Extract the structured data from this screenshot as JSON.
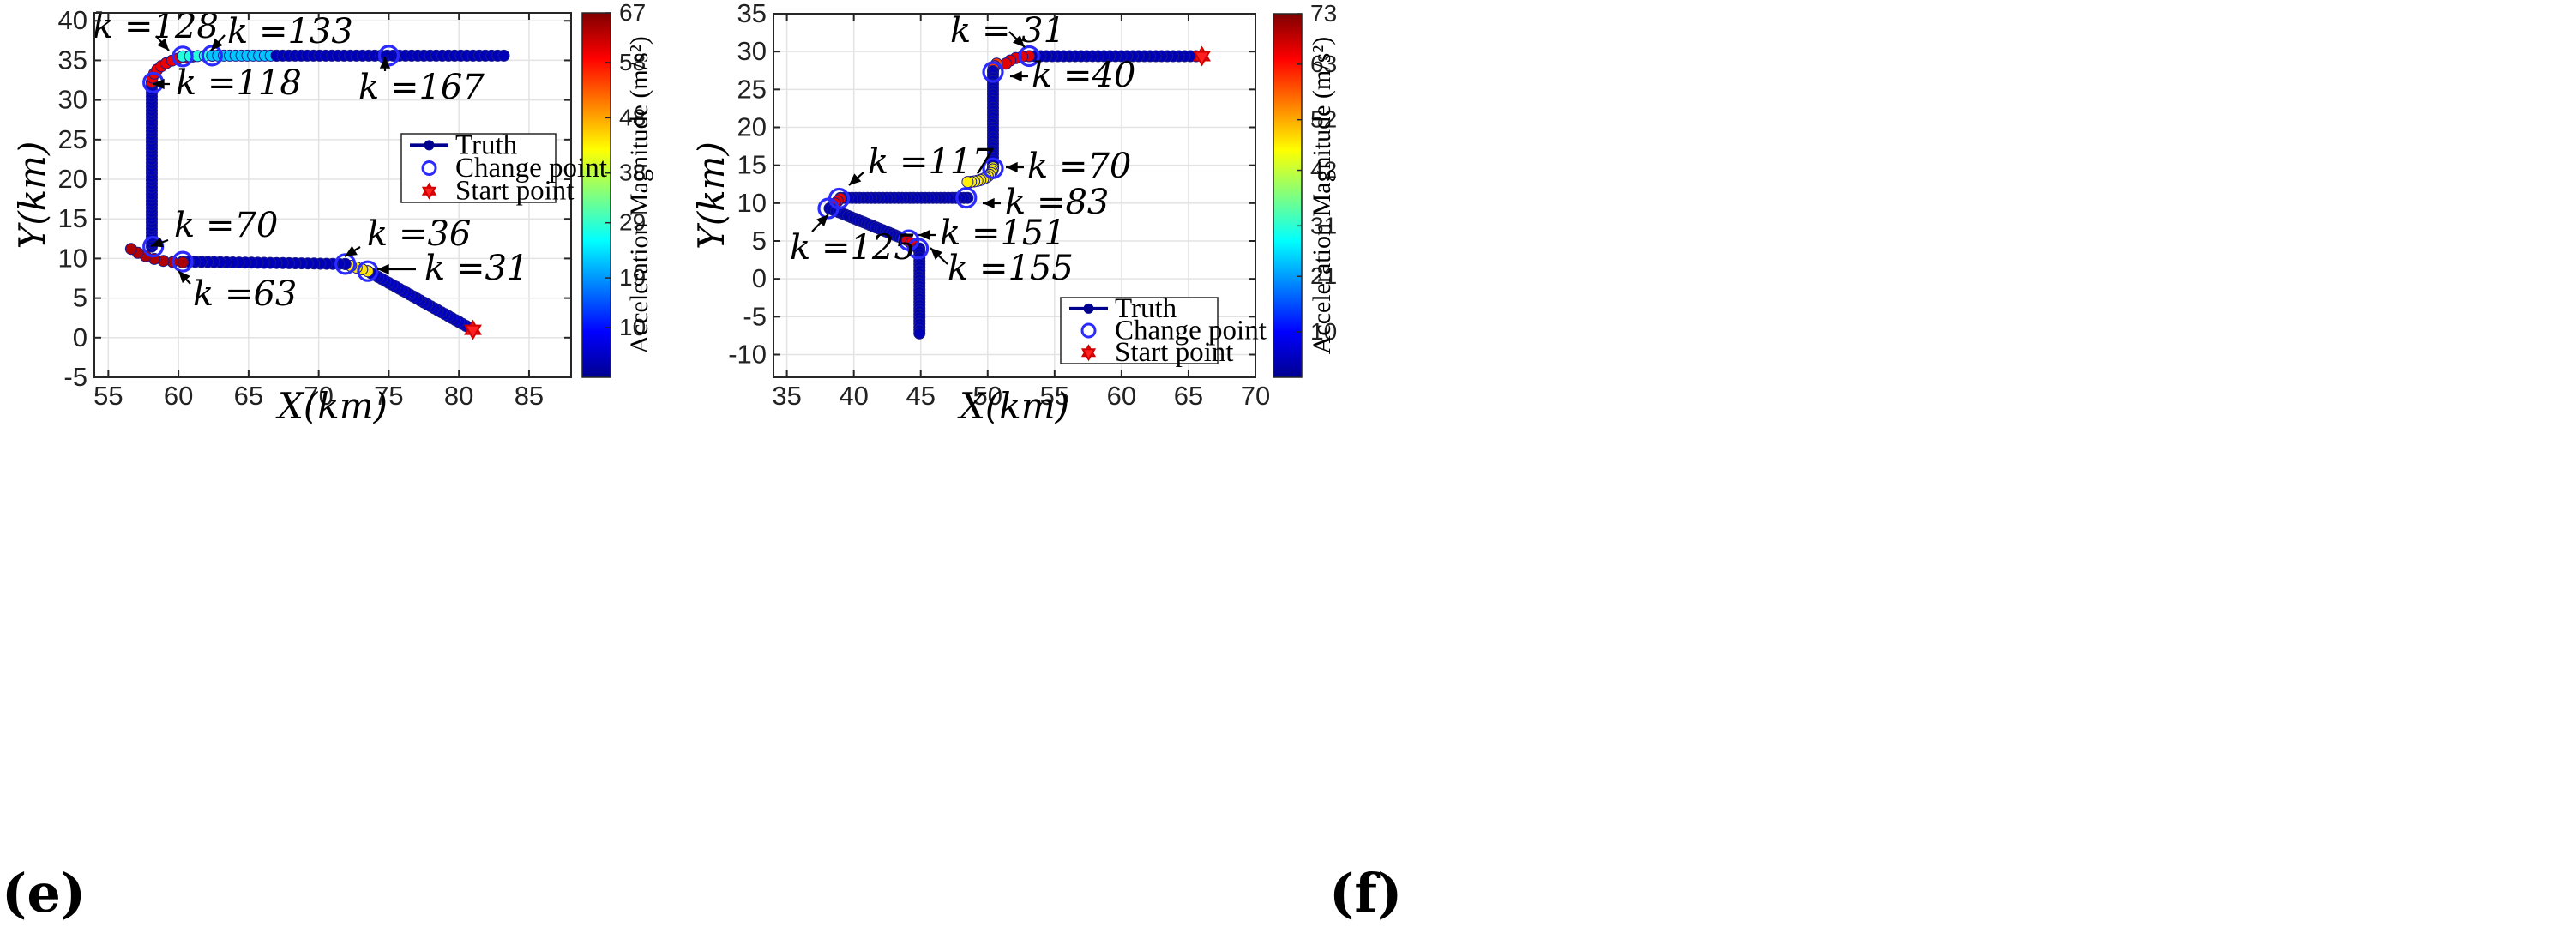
{
  "chart_data": [
    {
      "type": "scatter",
      "panel_label": "(e)",
      "xlabel": "X(km)",
      "ylabel": "Y(km)",
      "xlim": [
        54,
        88
      ],
      "ylim": [
        -5,
        41
      ],
      "xticks": [
        55,
        60,
        65,
        70,
        75,
        80,
        85
      ],
      "yticks": [
        -5,
        0,
        5,
        10,
        15,
        20,
        25,
        30,
        35,
        40
      ],
      "colorbar": {
        "label": "Acceleration Magnitude (m/s²)",
        "min": 1,
        "max": 67,
        "ticks": [
          10,
          19,
          29,
          38,
          48,
          58,
          67
        ]
      },
      "legend": {
        "position": "right-center",
        "entries": [
          "Truth",
          "Change point",
          "Start point"
        ]
      },
      "start_point": [
        81,
        1
      ],
      "path": [
        {
          "from": [
            81,
            1
          ],
          "to": [
            73.5,
            8.4
          ],
          "n": 31,
          "acc": 5
        },
        {
          "from": [
            73.5,
            8.4
          ],
          "to": [
            71.9,
            9.3
          ],
          "n": 5,
          "acc": 44
        },
        {
          "from": [
            71.9,
            9.3
          ],
          "to": [
            60.3,
            9.6
          ],
          "n": 27,
          "acc": 4
        },
        {
          "arc": true,
          "center": [
            60.3,
            14.3
          ],
          "r": 4.8,
          "a0": -90,
          "a1": -140,
          "n": 7,
          "acc": 64
        },
        {
          "from": [
            58.1,
            11.5
          ],
          "to": [
            58.1,
            32.2
          ],
          "n": 48,
          "acc": 4
        },
        {
          "arc": true,
          "center": [
            61.3,
            32.3
          ],
          "r": 3.2,
          "a0": 180,
          "a1": 95,
          "n": 10,
          "acc": 60
        },
        {
          "from": [
            60.3,
            35.5
          ],
          "to": [
            62.4,
            35.6
          ],
          "n": 5,
          "acc": 28
        },
        {
          "from": [
            62.4,
            35.6
          ],
          "to": [
            67,
            35.6
          ],
          "n": 12,
          "acc": 22
        },
        {
          "from": [
            67,
            35.6
          ],
          "to": [
            83.2,
            35.6
          ],
          "n": 38,
          "acc": 4
        }
      ],
      "change_points": [
        {
          "k": 31,
          "x": 73.5,
          "y": 8.4,
          "label": "k =31",
          "ann_pos": "right"
        },
        {
          "k": 36,
          "x": 71.9,
          "y": 9.3,
          "label": "k =36",
          "ann_pos": "upper-right"
        },
        {
          "k": 63,
          "x": 60.3,
          "y": 9.6,
          "label": "k =63",
          "ann_pos": "lower-right"
        },
        {
          "k": 70,
          "x": 58.2,
          "y": 11.5,
          "label": "k =70",
          "ann_pos": "upper-right"
        },
        {
          "k": 118,
          "x": 58.2,
          "y": 32.2,
          "label": "k =118",
          "ann_pos": "right"
        },
        {
          "k": 128,
          "x": 60.3,
          "y": 35.5,
          "label": "k =128",
          "ann_pos": "upper-left"
        },
        {
          "k": 133,
          "x": 62.4,
          "y": 35.6,
          "label": "k =133",
          "ann_pos": "upper-right"
        },
        {
          "k": 167,
          "x": 75.0,
          "y": 35.6,
          "label": "k =167",
          "ann_pos": "below"
        }
      ]
    },
    {
      "type": "scatter",
      "panel_label": "(f)",
      "xlabel": "X(km)",
      "ylabel": "Y(km)",
      "xlim": [
        34,
        70
      ],
      "ylim": [
        -13,
        35
      ],
      "xticks": [
        35,
        40,
        45,
        50,
        55,
        60,
        65,
        70
      ],
      "yticks": [
        -10,
        -5,
        0,
        5,
        10,
        15,
        20,
        25,
        30,
        35
      ],
      "colorbar": {
        "label": "Acceleration Magnitude (m/s²)",
        "min": 1,
        "max": 73,
        "ticks": [
          10,
          21,
          31,
          42,
          52,
          63,
          73
        ]
      },
      "legend": {
        "position": "bottom-right",
        "entries": [
          "Truth",
          "Change point",
          "Start point"
        ]
      },
      "start_point": [
        66,
        29.4
      ],
      "path": [
        {
          "from": [
            66,
            29.4
          ],
          "to": [
            53.1,
            29.4
          ],
          "n": 31,
          "acc": 4
        },
        {
          "arc": true,
          "center": [
            53.1,
            27.4
          ],
          "r": 2.0,
          "a0": 90,
          "a1": 150,
          "n": 5,
          "acc": 66
        },
        {
          "arc": true,
          "center": [
            52.4,
            27.4
          ],
          "r": 2.0,
          "a0": 150,
          "a1": 180,
          "n": 4,
          "acc": 60
        },
        {
          "from": [
            50.4,
            27.4
          ],
          "to": [
            50.4,
            14.7
          ],
          "n": 30,
          "acc": 4
        },
        {
          "arc": true,
          "center": [
            48.5,
            14.7
          ],
          "r": 1.9,
          "a0": 0,
          "a1": -90,
          "n": 13,
          "acc": 47
        },
        {
          "from": [
            48.5,
            10.7
          ],
          "to": [
            39,
            10.7
          ],
          "n": 34,
          "acc": 4
        },
        {
          "from": [
            39,
            10.6
          ],
          "to": [
            38.2,
            9.3
          ],
          "n": 5,
          "acc": 66
        },
        {
          "from": [
            38.2,
            9.3
          ],
          "to": [
            44,
            5.1
          ],
          "n": 26,
          "acc": 4
        },
        {
          "from": [
            44,
            5.1
          ],
          "to": [
            44.8,
            4.0
          ],
          "n": 4,
          "acc": 66
        },
        {
          "from": [
            44.9,
            4.0
          ],
          "to": [
            44.9,
            -7.2
          ],
          "n": 28,
          "acc": 4
        }
      ],
      "change_points": [
        {
          "k": 31,
          "x": 53.1,
          "y": 29.4,
          "label": "k = 31",
          "ann_pos": "upper-left"
        },
        {
          "k": 40,
          "x": 50.4,
          "y": 27.3,
          "label": "k =40",
          "ann_pos": "right"
        },
        {
          "k": 70,
          "x": 50.4,
          "y": 14.6,
          "label": "k =70",
          "ann_pos": "right"
        },
        {
          "k": 83,
          "x": 48.4,
          "y": 10.7,
          "label": "k =83",
          "ann_pos": "right"
        },
        {
          "k": 117,
          "x": 38.9,
          "y": 10.6,
          "label": "k =117",
          "ann_pos": "upper-right"
        },
        {
          "k": 125,
          "x": 38.1,
          "y": 9.3,
          "label": "k =125",
          "ann_pos": "lower-left"
        },
        {
          "k": 151,
          "x": 44.1,
          "y": 5.1,
          "label": "k =151",
          "ann_pos": "right"
        },
        {
          "k": 155,
          "x": 44.8,
          "y": 4.0,
          "label": "k =155",
          "ann_pos": "lower-right"
        }
      ]
    }
  ]
}
